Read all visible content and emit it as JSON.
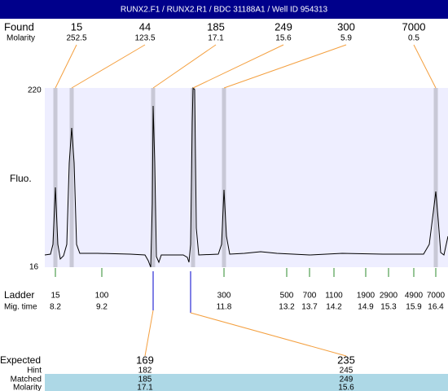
{
  "header": {
    "title": "RUNX2.F1 / RUNX2.R1 / BDC 31188A1 / Well ID 954313"
  },
  "found": {
    "label": "Found",
    "sublabel": "Molarity",
    "peaks": [
      {
        "size": "15",
        "molarity": "252.5"
      },
      {
        "size": "44",
        "molarity": "123.5"
      },
      {
        "size": "185",
        "molarity": "17.1"
      },
      {
        "size": "249",
        "molarity": "15.6"
      },
      {
        "size": "300",
        "molarity": "5.9"
      },
      {
        "size": "7000",
        "molarity": "0.5"
      }
    ]
  },
  "plot": {
    "y_label": "Fluo.",
    "y_max": "220",
    "y_min": "16"
  },
  "ladder": {
    "label": "Ladder",
    "sublabel": "Mig. time",
    "markers": [
      {
        "size": "15",
        "time": "8.2"
      },
      {
        "size": "100",
        "time": "9.2"
      },
      {
        "size": "300",
        "time": "11.8"
      },
      {
        "size": "500",
        "time": "13.2"
      },
      {
        "size": "700",
        "time": "13.7"
      },
      {
        "size": "1100",
        "time": "14.2"
      },
      {
        "size": "1900",
        "time": "14.9"
      },
      {
        "size": "2900",
        "time": "15.3"
      },
      {
        "size": "4900",
        "time": "15.9"
      },
      {
        "size": "7000",
        "time": "16.4"
      }
    ]
  },
  "expected": {
    "label": "Expected",
    "hint_label": "Hint",
    "matched_label": "Matched",
    "molarity_label": "Molarity",
    "columns": [
      {
        "expected": "169",
        "hint": "182",
        "matched": "185",
        "molarity": "17.1"
      },
      {
        "expected": "235",
        "hint": "245",
        "matched": "249",
        "molarity": "15.6"
      }
    ]
  }
}
